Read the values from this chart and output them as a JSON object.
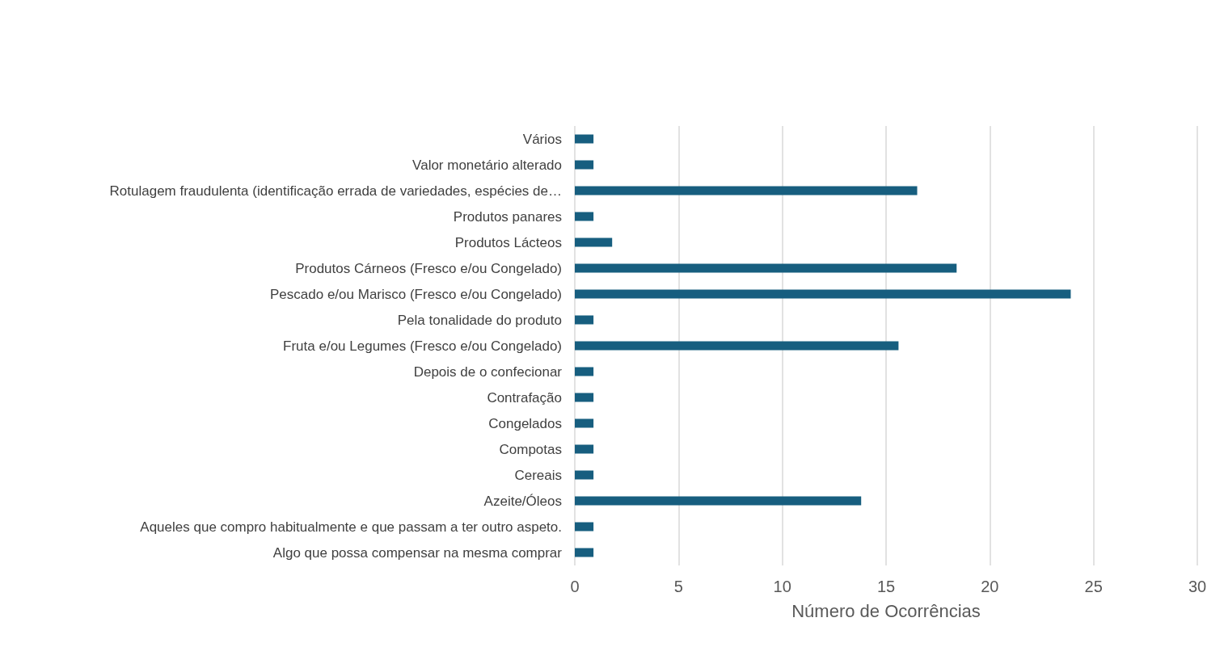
{
  "chart_data": {
    "type": "bar",
    "orientation": "horizontal",
    "xlabel": "Número de Ocorrências",
    "categories": [
      "Vários",
      "Valor monetário alterado",
      "Rotulagem fraudulenta (identificação errada de variedades, espécies de…",
      "Produtos panares",
      "Produtos Lácteos",
      "Produtos Cárneos (Fresco e/ou Congelado)",
      "Pescado e/ou Marisco (Fresco e/ou Congelado)",
      "Pela tonalidade do produto",
      "Fruta e/ou Legumes (Fresco e/ou Congelado)",
      "Depois de o confecionar",
      "Contrafação",
      "Congelados",
      "Compotas",
      "Cereais",
      "Azeite/Óleos",
      "Aqueles que compro habitualmente e que passam a ter outro aspeto.",
      "Algo que possa compensar na mesma comprar"
    ],
    "values": [
      0.9,
      0.9,
      16.5,
      0.9,
      1.8,
      18.4,
      23.9,
      0.9,
      15.6,
      0.9,
      0.9,
      0.9,
      0.9,
      0.9,
      13.8,
      0.9,
      0.9
    ],
    "color": "#175e7f",
    "xlim": [
      0,
      30
    ],
    "xticks": [
      0,
      5,
      10,
      15,
      20,
      25,
      30
    ],
    "grid": "x"
  }
}
